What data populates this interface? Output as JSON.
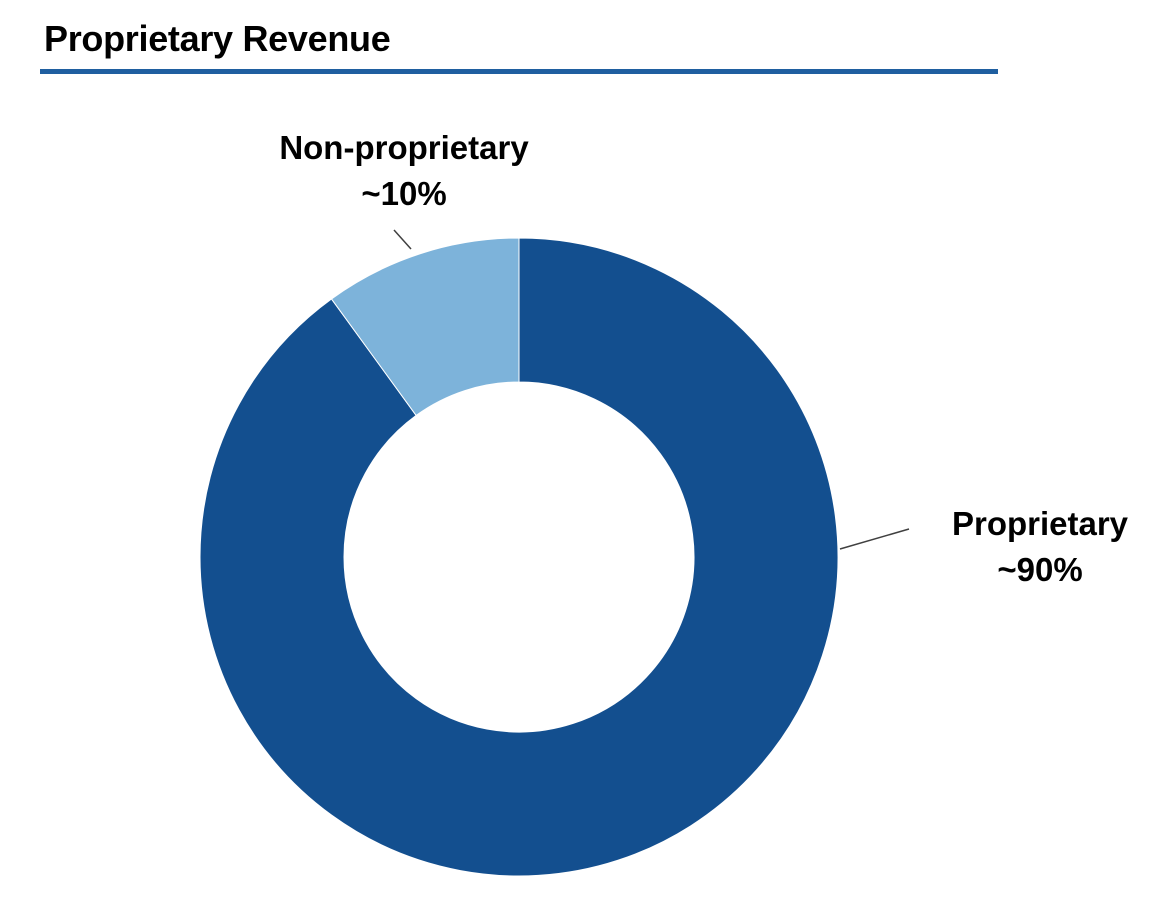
{
  "title": "Proprietary Revenue",
  "colors": {
    "title_rule": "#1f5fa0",
    "leader_line": "#404040"
  },
  "chart_data": {
    "type": "pie",
    "variant": "donut",
    "title": "Proprietary Revenue",
    "start_angle_deg": 0,
    "direction": "clockwise",
    "slices": [
      {
        "name": "Proprietary",
        "value": 90,
        "label": "~90%",
        "color": "#134f8f"
      },
      {
        "name": "Non-proprietary",
        "value": 10,
        "label": "~10%",
        "color": "#7db3da"
      }
    ],
    "legend": "none"
  }
}
